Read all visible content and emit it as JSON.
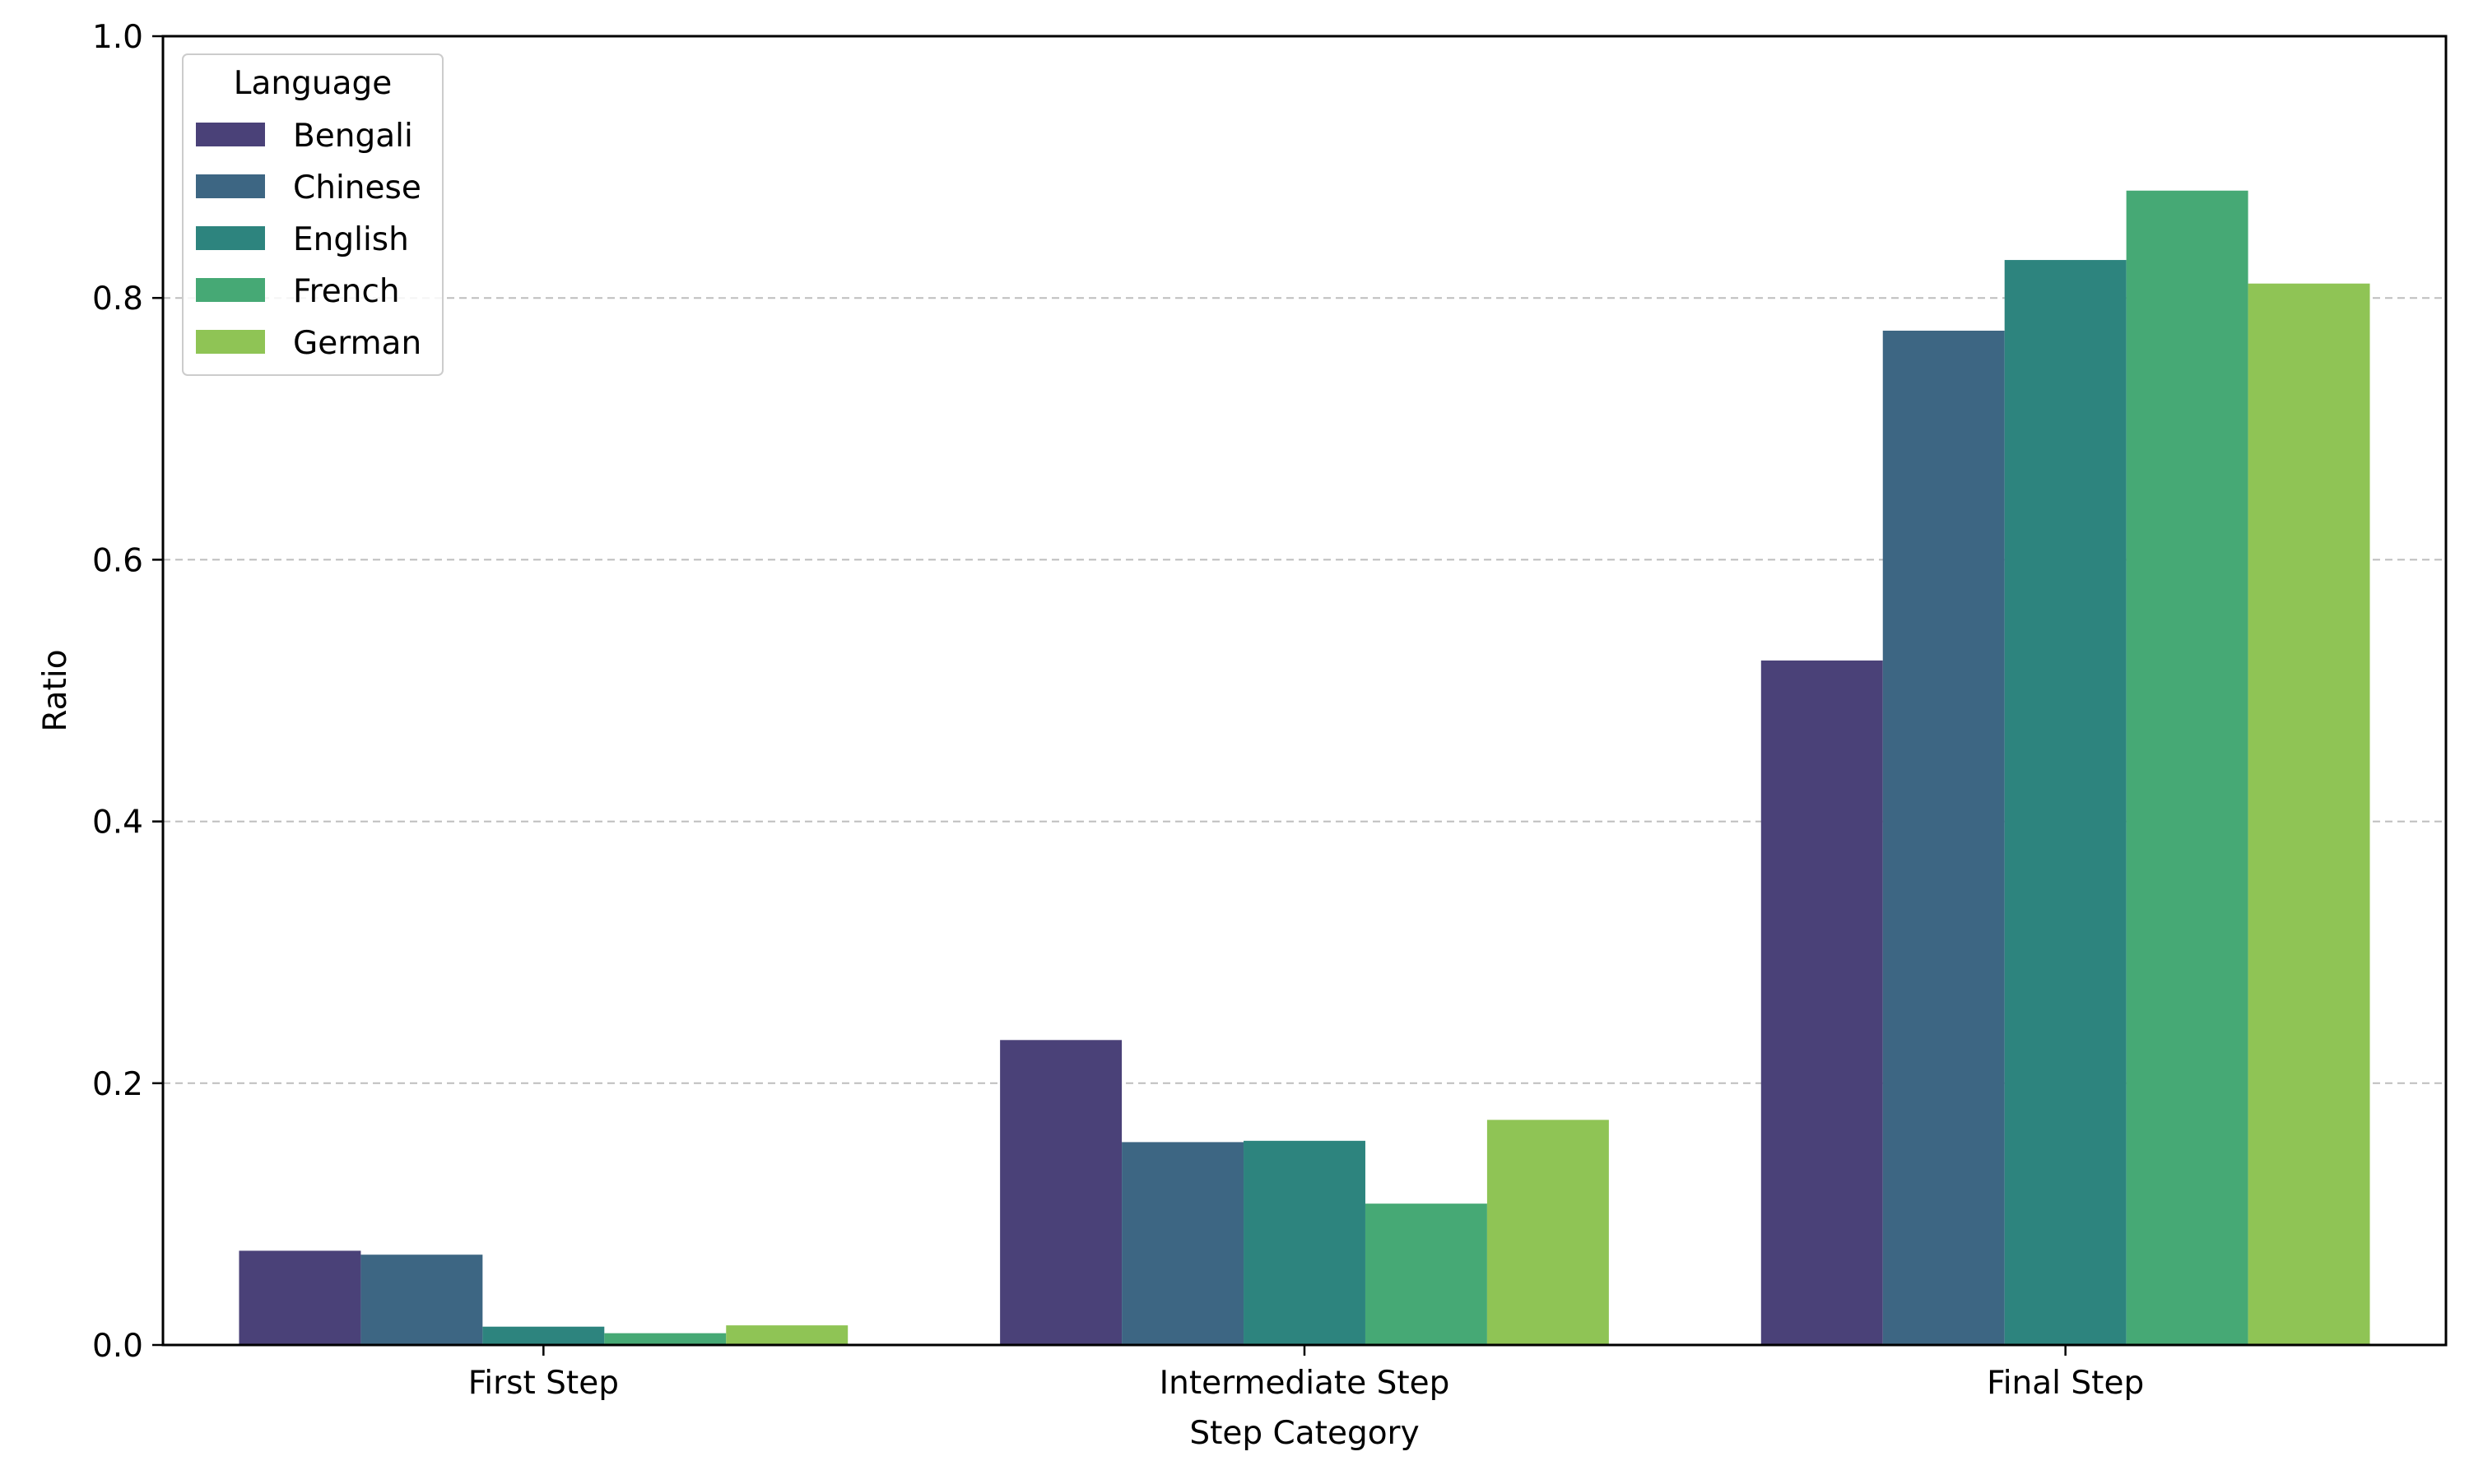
{
  "chart_data": {
    "type": "bar",
    "title": "",
    "xlabel": "Step Category",
    "ylabel": "Ratio",
    "categories": [
      "First Step",
      "Intermediate Step",
      "Final Step"
    ],
    "series": [
      {
        "name": "Bengali",
        "color": "#4a4178",
        "values": [
          0.072,
          0.233,
          0.523
        ]
      },
      {
        "name": "Chinese",
        "color": "#3d6683",
        "values": [
          0.069,
          0.155,
          0.775
        ]
      },
      {
        "name": "English",
        "color": "#2d847e",
        "values": [
          0.014,
          0.156,
          0.829
        ]
      },
      {
        "name": "French",
        "color": "#46a975",
        "values": [
          0.009,
          0.108,
          0.882
        ]
      },
      {
        "name": "German",
        "color": "#8fc455",
        "values": [
          0.015,
          0.172,
          0.811
        ]
      }
    ],
    "ylim": [
      0,
      1.0
    ],
    "yticks": [
      "0.0",
      "0.2",
      "0.4",
      "0.6",
      "0.8",
      "1.0"
    ],
    "grid": "y-dashed",
    "legend": {
      "title": "Language",
      "placement": "top-left"
    }
  }
}
